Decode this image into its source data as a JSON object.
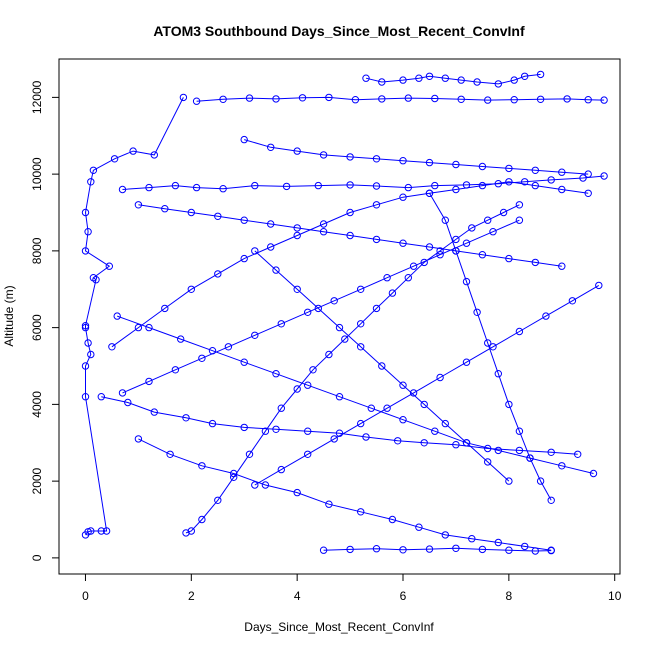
{
  "chart_data": {
    "type": "scatter",
    "title": "ATOM3 Southbound Days_Since_Most_Recent_ConvInf",
    "xlabel": "Days_Since_Most_Recent_ConvInf",
    "ylabel": "Altitude (m)",
    "xlim": [
      -0.5,
      10.1
    ],
    "ylim": [
      -420,
      13000
    ],
    "x_ticks": [
      0,
      2,
      4,
      6,
      8,
      10
    ],
    "y_ticks": [
      0,
      2000,
      4000,
      6000,
      8000,
      10000,
      12000
    ],
    "grid": false,
    "legend": "none",
    "marker": "open-circle",
    "connect_points": true,
    "series_color": "#0000ff",
    "series": [
      {
        "x": [
          0.0,
          0.05,
          0.1,
          0.3,
          0.4,
          0.0,
          0.0,
          0.1,
          0.05,
          0.0,
          0.0,
          0.2,
          0.15,
          0.45,
          0.0,
          0.05,
          0.0,
          0.1,
          0.15,
          0.55,
          0.9,
          1.3,
          1.85
        ],
        "y": [
          600,
          680,
          700,
          700,
          700,
          4200,
          5000,
          5300,
          5600,
          6000,
          6050,
          7250,
          7300,
          7600,
          8000,
          8500,
          9000,
          9800,
          10100,
          10400,
          10600,
          10500,
          12000
        ]
      },
      {
        "x": [
          2.1,
          2.6,
          3.1,
          3.6,
          4.1,
          4.6,
          5.1,
          5.6,
          6.1,
          6.6,
          7.1,
          7.6,
          8.1,
          8.6,
          9.1,
          9.5,
          9.8
        ],
        "y": [
          11900,
          11950,
          11980,
          11960,
          11990,
          12000,
          11940,
          11960,
          11980,
          11970,
          11950,
          11930,
          11940,
          11950,
          11960,
          11940,
          11930
        ]
      },
      {
        "x": [
          0.7,
          1.2,
          1.7,
          2.1,
          2.6,
          3.2,
          3.8,
          4.4,
          5.0,
          5.5,
          6.1,
          6.6,
          7.2,
          7.8,
          8.3,
          8.8,
          9.4,
          9.8
        ],
        "y": [
          9600,
          9650,
          9700,
          9650,
          9620,
          9700,
          9680,
          9700,
          9720,
          9690,
          9650,
          9700,
          9720,
          9750,
          9800,
          9850,
          9900,
          9950
        ]
      },
      {
        "x": [
          0.3,
          0.8,
          1.3,
          1.9,
          2.4,
          3.0,
          3.6,
          4.2,
          4.8,
          5.3,
          5.9,
          6.4,
          7.0,
          7.6,
          8.2,
          8.8,
          9.3
        ],
        "y": [
          4200,
          4050,
          3800,
          3650,
          3500,
          3400,
          3350,
          3300,
          3250,
          3150,
          3050,
          3000,
          2950,
          2850,
          2800,
          2750,
          2700
        ]
      },
      {
        "x": [
          1.0,
          1.6,
          2.2,
          2.8,
          3.4,
          4.0,
          4.6,
          5.2,
          5.8,
          6.3,
          6.8,
          7.3,
          7.8,
          8.3,
          8.8
        ],
        "y": [
          3100,
          2700,
          2400,
          2200,
          1900,
          1700,
          1400,
          1200,
          1000,
          800,
          600,
          500,
          400,
          300,
          200
        ]
      },
      {
        "x": [
          4.5,
          5.0,
          5.5,
          6.0,
          6.5,
          7.0,
          7.5,
          8.0,
          8.5,
          8.8
        ],
        "y": [
          200,
          220,
          240,
          210,
          230,
          250,
          220,
          200,
          180,
          190
        ]
      },
      {
        "x": [
          1.9,
          2.0,
          2.2,
          2.5,
          2.8,
          3.1,
          3.4,
          3.7,
          4.0,
          4.3,
          4.6,
          4.9,
          5.2,
          5.5,
          5.8,
          6.1,
          6.4,
          6.7,
          7.0,
          7.3,
          7.6,
          7.9,
          8.2
        ],
        "y": [
          650,
          700,
          1000,
          1500,
          2100,
          2700,
          3300,
          3900,
          4400,
          4900,
          5300,
          5700,
          6100,
          6500,
          6900,
          7300,
          7700,
          8000,
          8300,
          8600,
          8800,
          9000,
          9200
        ]
      },
      {
        "x": [
          8.2,
          7.7,
          7.2,
          6.7,
          6.2,
          5.7,
          5.2,
          4.7,
          4.2,
          3.7,
          3.2,
          2.7,
          2.2,
          1.7,
          1.2,
          0.7
        ],
        "y": [
          8800,
          8500,
          8200,
          7900,
          7600,
          7300,
          7000,
          6700,
          6400,
          6100,
          5800,
          5500,
          5200,
          4900,
          4600,
          4300
        ]
      },
      {
        "x": [
          0.5,
          1.0,
          1.5,
          2.0,
          2.5,
          3.0,
          3.5,
          4.0,
          4.5,
          5.0,
          5.5,
          6.0,
          6.5,
          7.0,
          7.5,
          8.0,
          8.5,
          9.0,
          9.5
        ],
        "y": [
          5500,
          6000,
          6500,
          7000,
          7400,
          7800,
          8100,
          8400,
          8700,
          9000,
          9200,
          9400,
          9500,
          9600,
          9700,
          9800,
          9700,
          9600,
          9500
        ]
      },
      {
        "x": [
          9.7,
          9.2,
          8.7,
          8.2,
          7.7,
          7.2,
          6.7,
          6.2,
          5.7,
          5.2,
          4.7,
          4.2,
          3.7,
          3.2
        ],
        "y": [
          7100,
          6700,
          6300,
          5900,
          5500,
          5100,
          4700,
          4300,
          3900,
          3500,
          3100,
          2700,
          2300,
          1900
        ]
      },
      {
        "x": [
          3.0,
          3.5,
          4.0,
          4.5,
          5.0,
          5.5,
          6.0,
          6.5,
          7.0,
          7.5,
          8.0,
          8.5,
          9.0,
          9.5
        ],
        "y": [
          10900,
          10700,
          10600,
          10500,
          10450,
          10400,
          10350,
          10300,
          10250,
          10200,
          10150,
          10100,
          10050,
          10000
        ]
      },
      {
        "x": [
          1.0,
          1.5,
          2.0,
          2.5,
          3.0,
          3.5,
          4.0,
          4.5,
          5.0,
          5.5,
          6.0,
          6.5,
          7.0,
          7.5,
          8.0,
          8.5,
          9.0
        ],
        "y": [
          9200,
          9100,
          9000,
          8900,
          8800,
          8700,
          8600,
          8500,
          8400,
          8300,
          8200,
          8100,
          8000,
          7900,
          7800,
          7700,
          7600
        ]
      },
      {
        "x": [
          6.5,
          6.8,
          7.0,
          7.2,
          7.4,
          7.6,
          7.8,
          8.0,
          8.2,
          8.4,
          8.6,
          8.8
        ],
        "y": [
          9500,
          8800,
          8000,
          7200,
          6400,
          5600,
          4800,
          4000,
          3300,
          2600,
          2000,
          1500
        ]
      },
      {
        "x": [
          3.2,
          3.6,
          4.0,
          4.4,
          4.8,
          5.2,
          5.6,
          6.0,
          6.4,
          6.8,
          7.2,
          7.6,
          8.0
        ],
        "y": [
          8000,
          7500,
          7000,
          6500,
          6000,
          5500,
          5000,
          4500,
          4000,
          3500,
          3000,
          2500,
          2000
        ]
      },
      {
        "x": [
          5.3,
          5.6,
          6.0,
          6.3,
          6.5,
          6.8,
          7.1,
          7.4,
          7.8,
          8.1,
          8.3,
          8.6
        ],
        "y": [
          12500,
          12400,
          12450,
          12500,
          12550,
          12500,
          12450,
          12400,
          12350,
          12450,
          12550,
          12600
        ]
      },
      {
        "x": [
          9.6,
          9.0,
          8.4,
          7.8,
          7.2,
          6.6,
          6.0,
          5.4,
          4.8,
          4.2,
          3.6,
          3.0,
          2.4,
          1.8,
          1.2,
          0.6
        ],
        "y": [
          2200,
          2400,
          2600,
          2800,
          3000,
          3300,
          3600,
          3900,
          4200,
          4500,
          4800,
          5100,
          5400,
          5700,
          6000,
          6300
        ]
      }
    ]
  }
}
